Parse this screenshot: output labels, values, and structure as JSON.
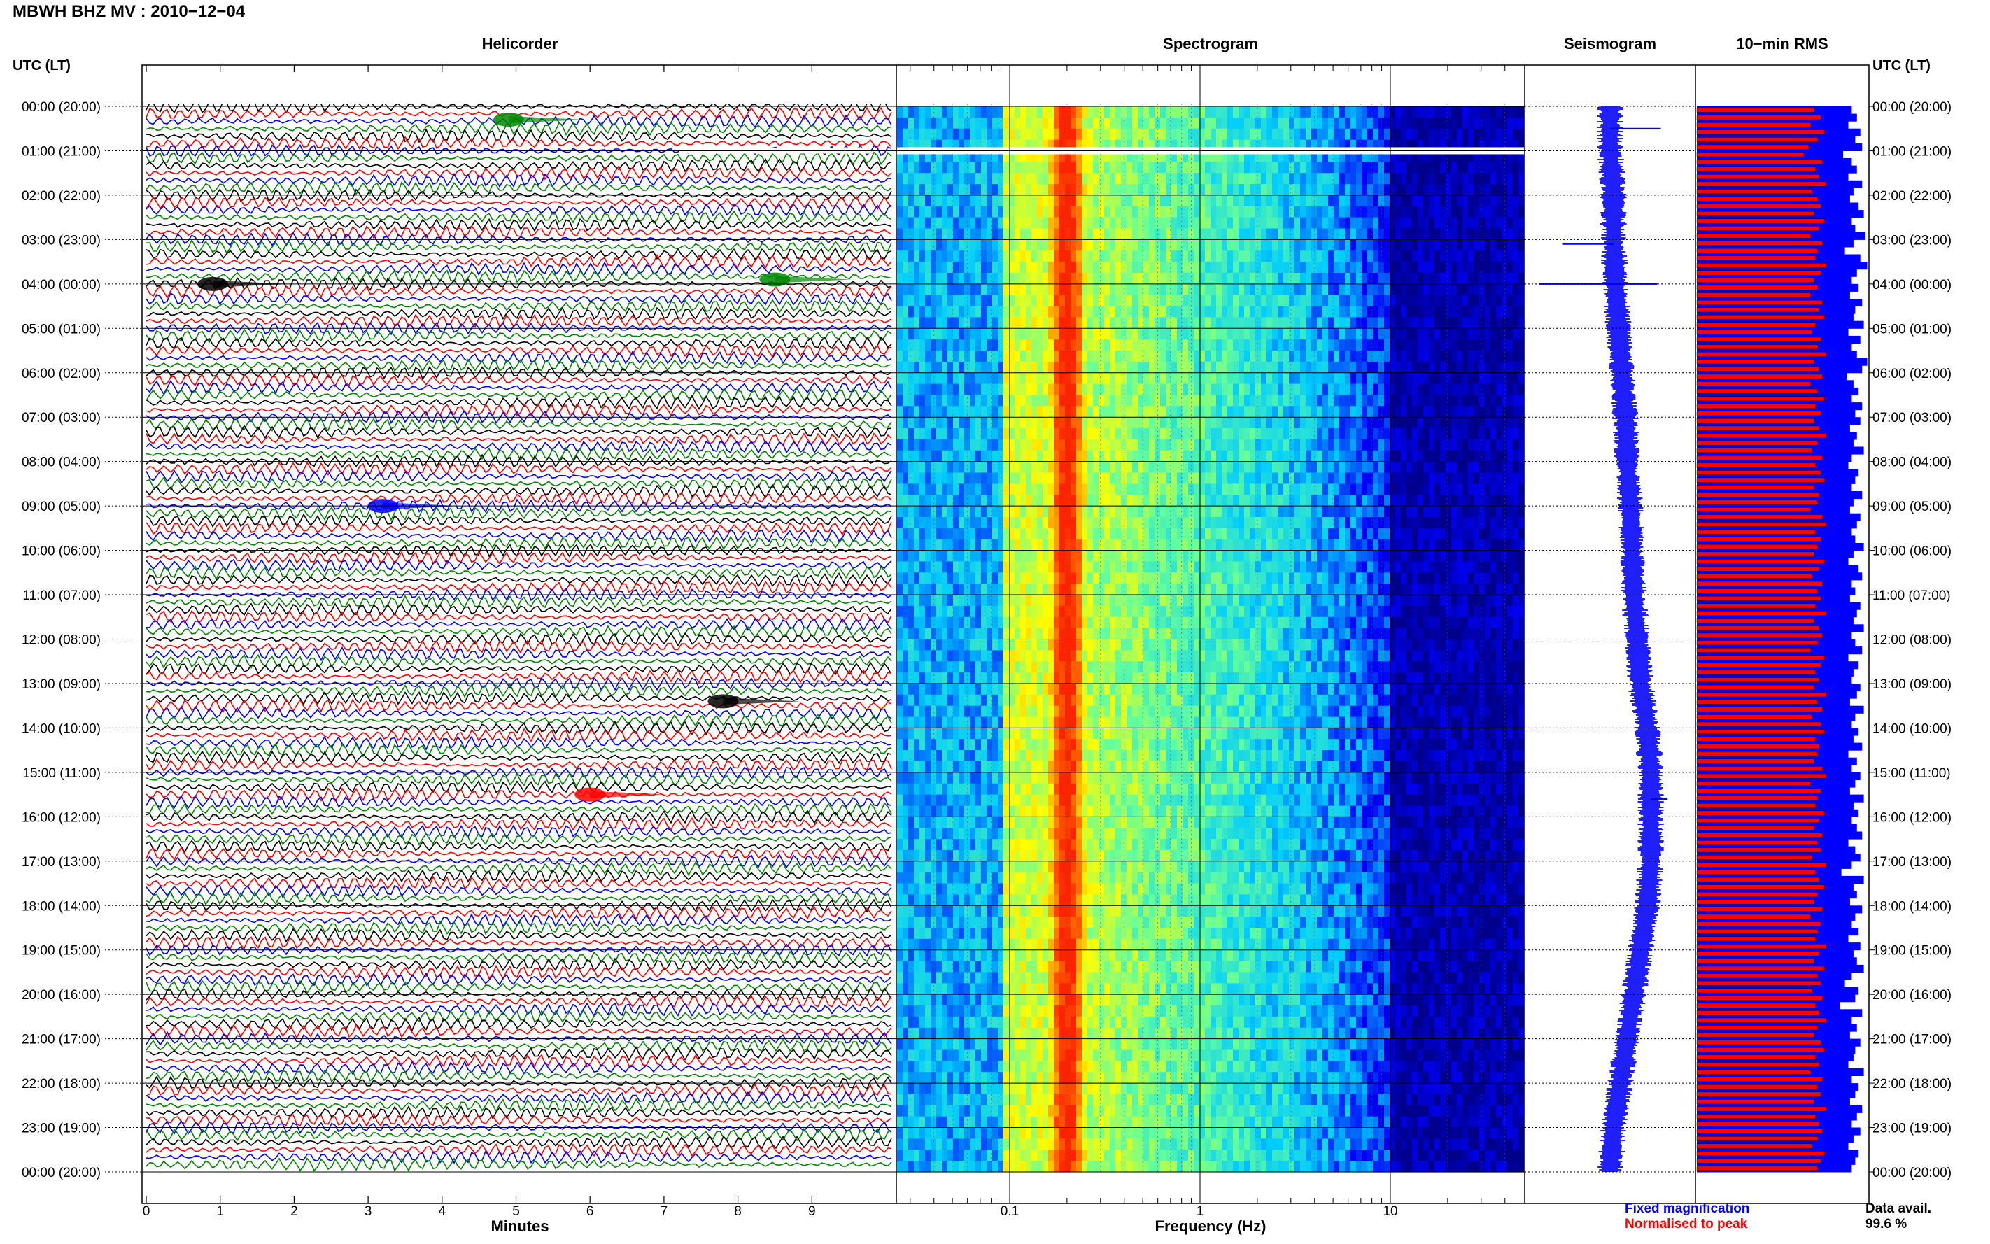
{
  "title": "MBWH BHZ MV : 2010−12−04",
  "left_axis_title": "UTC (LT)",
  "right_axis_title": "UTC (LT)",
  "panels": {
    "helicorder": "Helicorder",
    "spectrogram": "Spectrogram",
    "seismogram": "Seismogram",
    "rms": "10−min RMS"
  },
  "time_labels": [
    "00:00 (20:00)",
    "01:00 (21:00)",
    "02:00 (22:00)",
    "03:00 (23:00)",
    "04:00 (00:00)",
    "05:00 (01:00)",
    "06:00 (02:00)",
    "07:00 (03:00)",
    "08:00 (04:00)",
    "09:00 (05:00)",
    "10:00 (06:00)",
    "11:00 (07:00)",
    "12:00 (08:00)",
    "13:00 (09:00)",
    "14:00 (10:00)",
    "15:00 (11:00)",
    "16:00 (12:00)",
    "17:00 (13:00)",
    "18:00 (14:00)",
    "19:00 (15:00)",
    "20:00 (16:00)",
    "21:00 (17:00)",
    "22:00 (18:00)",
    "23:00 (19:00)",
    "00:00 (20:00)"
  ],
  "legend": {
    "fixed": "Fixed magnification",
    "normalised": "Normalised to peak",
    "fixed_color": "#0000ff",
    "normalised_color": "#ff0000"
  },
  "data_avail": {
    "label": "Data avail.",
    "value": "99.6 %"
  },
  "chart_data": [
    {
      "type": "line",
      "title": "Helicorder",
      "xlabel": "Minutes",
      "xlim": [
        0,
        10
      ],
      "x_ticks": [
        "0",
        "1",
        "2",
        "3",
        "4",
        "5",
        "6",
        "7",
        "8",
        "9"
      ],
      "trace_colors": [
        "#000000",
        "#ff0000",
        "#0000ff",
        "#008800"
      ],
      "rows": 144,
      "rows_per_hour": 6,
      "events": [
        {
          "hour": 0.3,
          "minute": 4.9,
          "color": "#008800"
        },
        {
          "hour": 3.9,
          "minute": 8.5,
          "color": "#008800"
        },
        {
          "hour": 4.0,
          "minute": 0.9,
          "color": "#000000"
        },
        {
          "hour": 9.0,
          "minute": 3.2,
          "color": "#0000ff"
        },
        {
          "hour": 15.5,
          "minute": 6.0,
          "color": "#ff0000"
        },
        {
          "hour": 13.4,
          "minute": 7.8,
          "color": "#000000"
        }
      ],
      "data_gaps": [
        {
          "hour": 1.0,
          "from_minute": 7.2,
          "to_minute": 9.8
        }
      ]
    },
    {
      "type": "heatmap",
      "title": "Spectrogram",
      "xlabel": "Frequency (Hz)",
      "x_scale": "log",
      "xlim": [
        0.02,
        50
      ],
      "x_ticks": [
        "0.1",
        "1",
        "10"
      ],
      "hours": 24,
      "data_gap_hours": [
        1.0
      ],
      "dominant_band_hz": [
        0.14,
        0.35
      ],
      "colormap": [
        "#00008b",
        "#0000ff",
        "#00ccff",
        "#66ff99",
        "#ffff00",
        "#ff8800",
        "#ff2200"
      ]
    },
    {
      "type": "line",
      "title": "Seismogram",
      "series": [
        {
          "name": "Fixed magnification",
          "color": "#0000ff"
        }
      ],
      "offsets": [
        0.5,
        0.5,
        0.52,
        0.52,
        0.53,
        0.55,
        0.57,
        0.59,
        0.6,
        0.62,
        0.63,
        0.64,
        0.66,
        0.68,
        0.72,
        0.74,
        0.74,
        0.74,
        0.72,
        0.68,
        0.64,
        0.6,
        0.56,
        0.52,
        0.5
      ],
      "amplitude_scale": 0.06,
      "spikes": [
        {
          "hour": 0.5,
          "direction": "right",
          "length": 0.3
        },
        {
          "hour": 3.1,
          "direction": "left",
          "length": 0.3
        },
        {
          "hour": 4.0,
          "direction": "left",
          "length": 0.45
        },
        {
          "hour": 4.0,
          "direction": "right",
          "length": 0.25
        },
        {
          "hour": 15.6,
          "direction": "right",
          "length": 0.1
        }
      ]
    },
    {
      "type": "bar",
      "title": "10-min RMS",
      "bars_per_hour": 6,
      "xlim": [
        0,
        1
      ],
      "series": [
        {
          "name": "Fixed magnification",
          "color": "#0000ff",
          "values": [
            0.9,
            0.93,
            0.88,
            0.95,
            0.92,
            0.96,
            0.85,
            0.9,
            0.93,
            0.88,
            0.96,
            0.91,
            0.89,
            0.94,
            0.97,
            0.9,
            0.92,
            0.98,
            0.91,
            0.86,
            0.95,
            0.99,
            0.93,
            0.9,
            0.94,
            0.89,
            0.96,
            0.92,
            0.91,
            0.97,
            0.88,
            0.95,
            0.9,
            0.93,
            0.99,
            0.96,
            0.87,
            0.91,
            0.94,
            0.9,
            0.96,
            0.92,
            0.95,
            0.89,
            0.93,
            0.91,
            0.97,
            0.9,
            0.88,
            0.94,
            0.92,
            0.9,
            0.96,
            0.91,
            0.89,
            0.95,
            0.93,
            0.9,
            0.92,
            0.97,
            0.91,
            0.88,
            0.94,
            0.96,
            0.9,
            0.92,
            0.89,
            0.95,
            0.93,
            0.91,
            0.97,
            0.9,
            0.92,
            0.96,
            0.88,
            0.94,
            0.91,
            0.9,
            0.95,
            0.93,
            0.89,
            0.97,
            0.92,
            0.9,
            0.94,
            0.91,
            0.96,
            0.88,
            0.93,
            0.9,
            0.95,
            0.92,
            0.89,
            0.97,
            0.91,
            0.94,
            0.9,
            0.93,
            0.96,
            0.88,
            0.92,
            0.95,
            0.9,
            0.84,
            0.97,
            0.91,
            0.93,
            0.89,
            0.96,
            0.92,
            0.9,
            0.94,
            0.88,
            0.95,
            0.91,
            0.93,
            0.97,
            0.9,
            0.86,
            0.94,
            0.92,
            0.83,
            0.96,
            0.9,
            0.93,
            0.89,
            0.95,
            0.92,
            0.91,
            0.88,
            0.97,
            0.9,
            0.94,
            0.92,
            0.89,
            0.96,
            0.93,
            0.9,
            0.95,
            0.91,
            0.88,
            0.94,
            0.92,
            0.9
          ]
        },
        {
          "name": "Normalised to peak",
          "color": "#ff0000",
          "values": [
            0.68,
            0.72,
            0.66,
            0.74,
            0.7,
            0.65,
            0.62,
            0.73,
            0.69,
            0.71,
            0.75,
            0.67,
            0.7,
            0.72,
            0.68,
            0.74,
            0.71,
            0.66,
            0.73,
            0.7,
            0.69,
            0.75,
            0.72,
            0.68,
            0.7,
            0.66,
            0.73,
            0.71,
            0.74,
            0.69,
            0.67,
            0.72,
            0.7,
            0.75,
            0.68,
            0.71,
            0.73,
            0.66,
            0.7,
            0.74,
            0.69,
            0.72,
            0.68,
            0.71,
            0.75,
            0.7,
            0.67,
            0.73,
            0.69,
            0.72,
            0.74,
            0.68,
            0.71,
            0.7,
            0.66,
            0.73,
            0.75,
            0.69,
            0.72,
            0.7,
            0.68,
            0.74,
            0.71,
            0.67,
            0.73,
            0.7,
            0.72,
            0.69,
            0.75,
            0.68,
            0.71,
            0.73,
            0.7,
            0.66,
            0.74,
            0.72,
            0.69,
            0.71,
            0.68,
            0.75,
            0.7,
            0.73,
            0.67,
            0.72,
            0.74,
            0.69,
            0.71,
            0.7,
            0.68,
            0.73,
            0.75,
            0.66,
            0.72,
            0.7,
            0.69,
            0.74,
            0.71,
            0.68,
            0.73,
            0.7,
            0.72,
            0.67,
            0.75,
            0.69,
            0.71,
            0.74,
            0.7,
            0.68,
            0.73,
            0.66,
            0.72,
            0.7,
            0.69,
            0.75,
            0.71,
            0.68,
            0.74,
            0.7,
            0.72,
            0.67,
            0.73,
            0.69,
            0.71,
            0.75,
            0.7,
            0.68,
            0.72,
            0.74,
            0.69,
            0.71,
            0.66,
            0.73,
            0.7,
            0.72,
            0.68,
            0.75,
            0.69,
            0.71,
            0.73,
            0.7,
            0.67,
            0.74,
            0.72,
            0.7
          ]
        }
      ]
    }
  ]
}
